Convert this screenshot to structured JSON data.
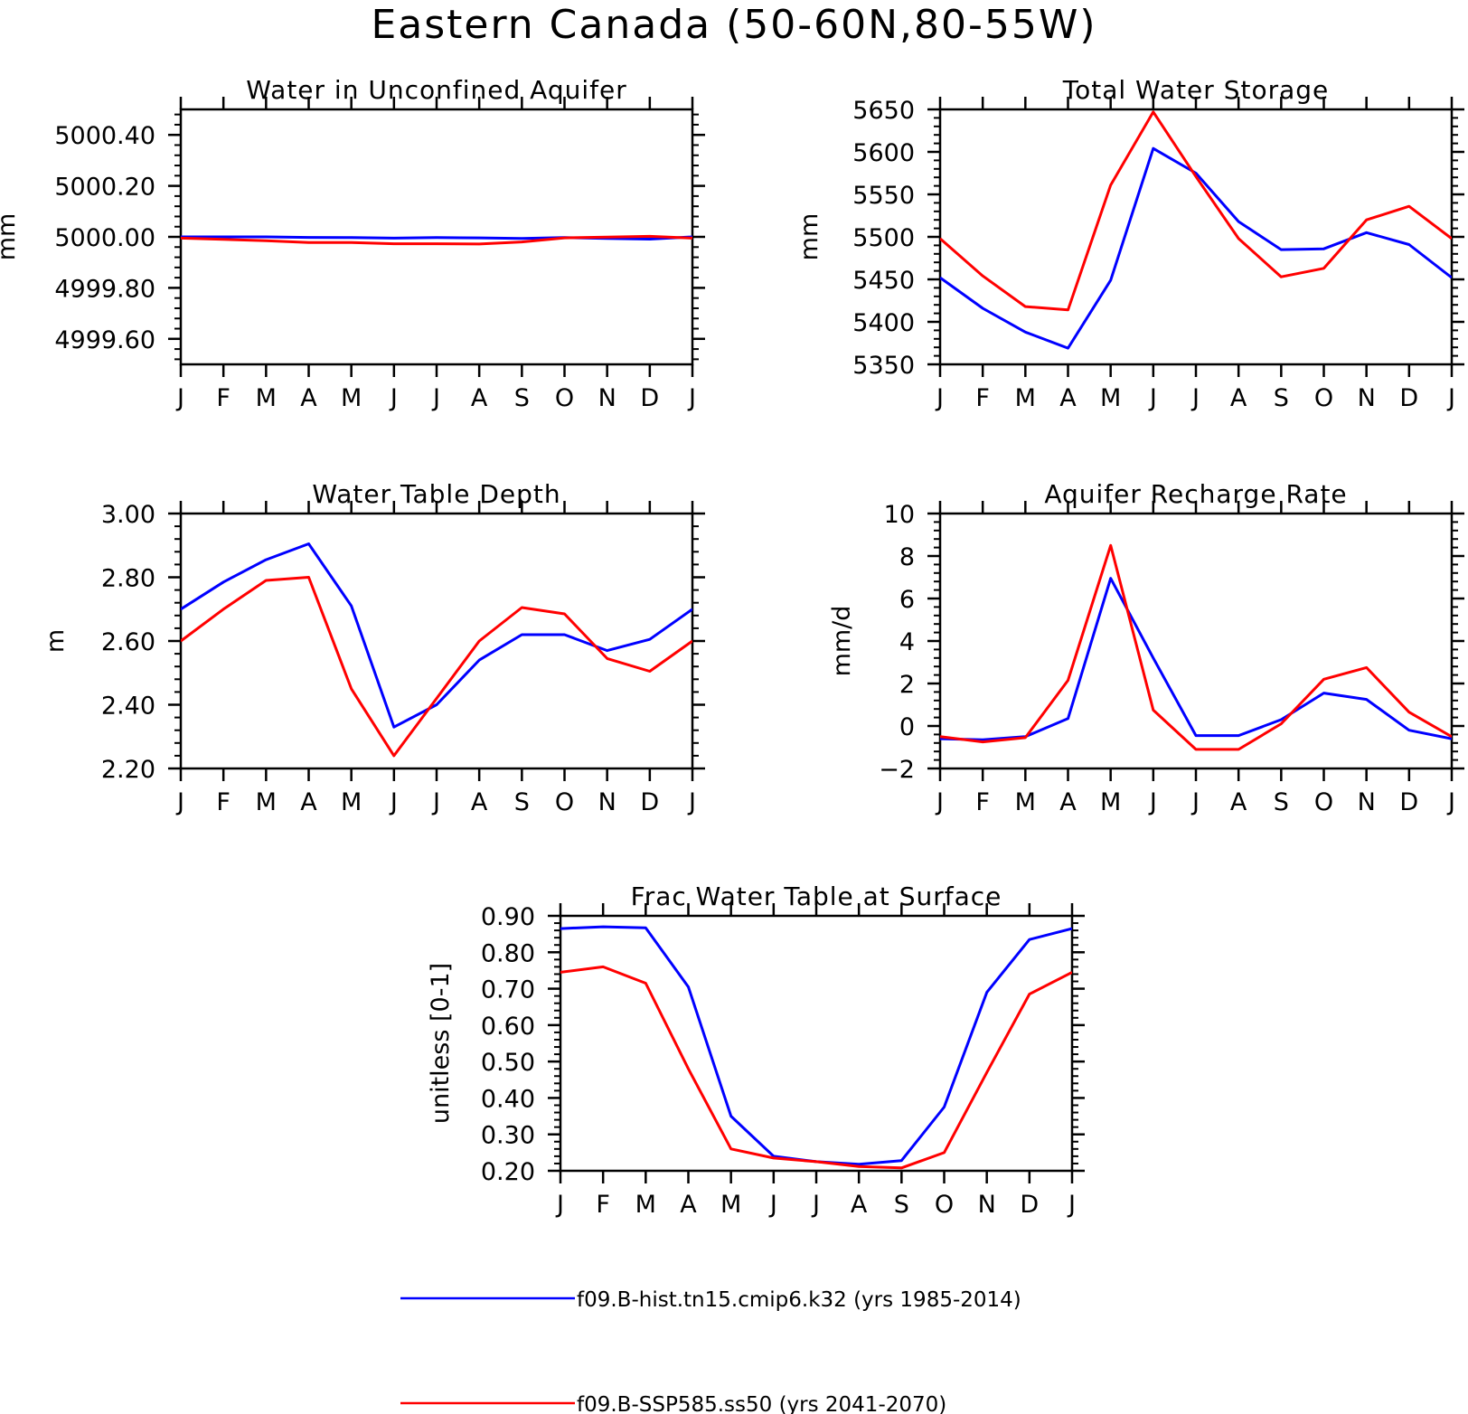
{
  "title": "Eastern Canada (50-60N,80-55W)",
  "month_labels": [
    "J",
    "F",
    "M",
    "A",
    "M",
    "J",
    "J",
    "A",
    "S",
    "O",
    "N",
    "D",
    "J"
  ],
  "colors": {
    "hist": "#0000ff",
    "ssp": "#ff0000",
    "axis": "#000000"
  },
  "legend": [
    {
      "label": "f09.B-hist.tn15.cmip6.k32 (yrs 1985-2014)",
      "color": "#0000ff"
    },
    {
      "label": "f09.B-SSP585.ss50 (yrs 2041-2070)",
      "color": "#ff0000"
    }
  ],
  "chart_data": [
    {
      "type": "line",
      "title": "Water in Unconfined Aquifer",
      "ylabel": "mm",
      "ylim": [
        4999.5,
        5000.5
      ],
      "yticks": [
        4999.6,
        4999.8,
        5000.0,
        5000.2,
        5000.4
      ],
      "ytick_labels": [
        "4999.60",
        "4999.80",
        "5000.00",
        "5000.20",
        "5000.40"
      ],
      "series": [
        {
          "values": [
            5000.0,
            5000.0,
            5000.0,
            4999.998,
            4999.997,
            4999.995,
            4999.997,
            4999.996,
            4999.994,
            4999.997,
            4999.994,
            4999.991,
            5000.0
          ],
          "color": "#0000ff"
        },
        {
          "values": [
            4999.995,
            4999.99,
            4999.985,
            4999.978,
            4999.978,
            4999.973,
            4999.973,
            4999.972,
            4999.98,
            4999.996,
            4999.999,
            5000.002,
            4999.995
          ],
          "color": "#ff0000"
        }
      ]
    },
    {
      "type": "line",
      "title": "Total Water Storage",
      "ylabel": "mm",
      "ylim": [
        5350,
        5650
      ],
      "yticks": [
        5350,
        5400,
        5450,
        5500,
        5550,
        5600,
        5650
      ],
      "ytick_labels": [
        "5350",
        "5400",
        "5450",
        "5500",
        "5550",
        "5600",
        "5650"
      ],
      "series": [
        {
          "values": [
            5452,
            5416,
            5388,
            5369,
            5449,
            5604,
            5575,
            5518,
            5485,
            5486,
            5505,
            5491,
            5452
          ],
          "color": "#0000ff"
        },
        {
          "values": [
            5498,
            5454,
            5418,
            5414,
            5561,
            5647,
            5571,
            5498,
            5453,
            5463,
            5520,
            5536,
            5498
          ],
          "color": "#ff0000"
        }
      ]
    },
    {
      "type": "line",
      "title": "Water Table Depth",
      "ylabel": "m",
      "ylim": [
        2.2,
        3.0
      ],
      "yticks": [
        2.2,
        2.4,
        2.6,
        2.8,
        3.0
      ],
      "ytick_labels": [
        "2.20",
        "2.40",
        "2.60",
        "2.80",
        "3.00"
      ],
      "series": [
        {
          "values": [
            2.7,
            2.785,
            2.855,
            2.905,
            2.71,
            2.33,
            2.4,
            2.54,
            2.62,
            2.62,
            2.57,
            2.605,
            2.7
          ],
          "color": "#0000ff"
        },
        {
          "values": [
            2.6,
            2.7,
            2.79,
            2.8,
            2.45,
            2.24,
            2.42,
            2.6,
            2.705,
            2.685,
            2.545,
            2.505,
            2.6
          ],
          "color": "#ff0000"
        }
      ]
    },
    {
      "type": "line",
      "title": "Aquifer Recharge Rate",
      "ylabel": "mm/d",
      "ylim": [
        -2,
        10
      ],
      "yticks": [
        -2,
        0,
        2,
        4,
        6,
        8,
        10
      ],
      "ytick_labels": [
        "−2",
        "0",
        "2",
        "4",
        "6",
        "8",
        "10"
      ],
      "series": [
        {
          "values": [
            -0.6,
            -0.65,
            -0.5,
            0.35,
            6.95,
            3.2,
            -0.45,
            -0.45,
            0.3,
            1.55,
            1.25,
            -0.2,
            -0.6
          ],
          "color": "#0000ff"
        },
        {
          "values": [
            -0.5,
            -0.75,
            -0.55,
            2.15,
            8.5,
            0.75,
            -1.1,
            -1.1,
            0.1,
            2.2,
            2.75,
            0.65,
            -0.5
          ],
          "color": "#ff0000"
        }
      ]
    },
    {
      "type": "line",
      "title": "Frac Water Table at Surface",
      "ylabel": "unitless [0-1]",
      "ylim": [
        0.2,
        0.9
      ],
      "yticks": [
        0.2,
        0.3,
        0.4,
        0.5,
        0.6,
        0.7,
        0.8,
        0.9
      ],
      "ytick_labels": [
        "0.20",
        "0.30",
        "0.40",
        "0.50",
        "0.60",
        "0.70",
        "0.80",
        "0.90"
      ],
      "series": [
        {
          "values": [
            0.865,
            0.87,
            0.867,
            0.705,
            0.35,
            0.24,
            0.225,
            0.218,
            0.228,
            0.375,
            0.69,
            0.835,
            0.865
          ],
          "color": "#0000ff"
        },
        {
          "values": [
            0.745,
            0.76,
            0.715,
            0.48,
            0.26,
            0.235,
            0.225,
            0.212,
            0.208,
            0.25,
            0.47,
            0.685,
            0.745
          ],
          "color": "#ff0000"
        }
      ]
    }
  ]
}
